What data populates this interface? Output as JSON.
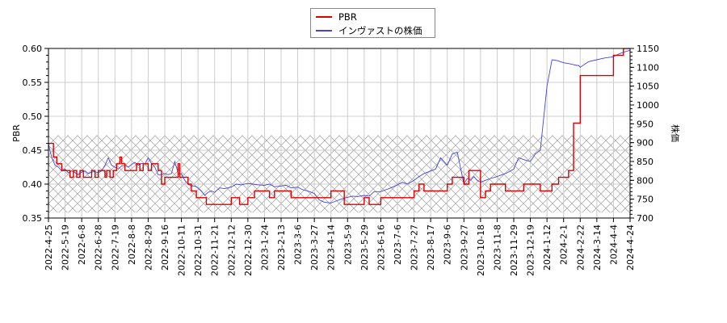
{
  "legend": {
    "items": [
      {
        "label": "PBR",
        "color": "#dd0000"
      },
      {
        "label": "インヴァストの株価",
        "color": "#4444dd"
      }
    ]
  },
  "chart_data": {
    "type": "line",
    "title": "",
    "xlabel": "",
    "ylabel_left": "PBR",
    "ylabel_right": "株価",
    "ylim_left": [
      0.35,
      0.6
    ],
    "ylim_right": [
      700,
      1150
    ],
    "yticks_left": [
      "0.35",
      "0.40",
      "0.45",
      "0.50",
      "0.55",
      "0.60"
    ],
    "yticks_right": [
      "700",
      "750",
      "800",
      "850",
      "900",
      "950",
      "1000",
      "1050",
      "1100",
      "1150"
    ],
    "xticks": [
      "2022-4-25",
      "2022-5-19",
      "2022-6-8",
      "2022-6-28",
      "2022-7-19",
      "2022-8-8",
      "2022-8-29",
      "2022-9-16",
      "2022-10-11",
      "2022-10-31",
      "2022-11-21",
      "2022-12-12",
      "2022-12-30",
      "2023-1-24",
      "2023-2-13",
      "2023-3-6",
      "2023-3-27",
      "2023-4-14",
      "2023-5-9",
      "2023-5-29",
      "2023-6-16",
      "2023-7-6",
      "2023-7-27",
      "2023-8-17",
      "2023-9-6",
      "2023-9-27",
      "2023-10-18",
      "2023-11-8",
      "2023-11-29",
      "2023-12-19",
      "2024-1-12",
      "2024-2-1",
      "2024-2-22",
      "2024-3-14",
      "2024-4-4",
      "2024-4-24"
    ],
    "grid": true,
    "shaded_band_pbr": [
      0.358,
      0.472
    ],
    "series": [
      {
        "name": "PBR",
        "axis": "left",
        "step": true,
        "x_tick_index": [
          0,
          0.3,
          0.5,
          0.8,
          1.0,
          1.3,
          1.5,
          1.7,
          1.9,
          2.1,
          2.3,
          2.6,
          2.8,
          3.0,
          3.2,
          3.4,
          3.5,
          3.7,
          3.9,
          4.1,
          4.3,
          4.4,
          4.6,
          4.8,
          5.0,
          5.3,
          5.5,
          5.7,
          5.9,
          6.0,
          6.2,
          6.4,
          6.6,
          6.8,
          7.0,
          7.2,
          7.4,
          7.6,
          7.8,
          7.9,
          8.1,
          8.4,
          8.6,
          8.9,
          9.1,
          9.3,
          9.5,
          9.8,
          10.0,
          10.5,
          11.0,
          11.5,
          12.0,
          12.4,
          12.6,
          12.9,
          13.1,
          13.3,
          13.6,
          14.0,
          14.6,
          15.0,
          15.3,
          15.6,
          16.0,
          16.5,
          17.0,
          17.8,
          18.1,
          18.5,
          19.0,
          19.3,
          19.6,
          20.0,
          20.6,
          21.0,
          21.3,
          21.7,
          22.0,
          22.3,
          22.6,
          23.0,
          23.5,
          24.0,
          24.3,
          24.6,
          25.0,
          25.3,
          25.6,
          26.0,
          26.3,
          26.6,
          27.0,
          27.5,
          28.0,
          28.6,
          29.0,
          29.3,
          29.6,
          30.0,
          30.3,
          30.7,
          31.0,
          31.3,
          31.6,
          32.0,
          33.0,
          33.6,
          34.0,
          34.3,
          34.6,
          35.0
        ],
        "values": [
          0.46,
          0.44,
          0.43,
          0.42,
          0.42,
          0.41,
          0.42,
          0.41,
          0.42,
          0.41,
          0.41,
          0.42,
          0.41,
          0.42,
          0.42,
          0.41,
          0.42,
          0.41,
          0.42,
          0.43,
          0.44,
          0.43,
          0.42,
          0.42,
          0.42,
          0.43,
          0.42,
          0.43,
          0.43,
          0.42,
          0.43,
          0.43,
          0.42,
          0.4,
          0.41,
          0.41,
          0.41,
          0.41,
          0.43,
          0.41,
          0.41,
          0.4,
          0.39,
          0.38,
          0.38,
          0.38,
          0.37,
          0.37,
          0.37,
          0.37,
          0.38,
          0.37,
          0.38,
          0.39,
          0.39,
          0.39,
          0.39,
          0.38,
          0.39,
          0.39,
          0.38,
          0.38,
          0.38,
          0.38,
          0.38,
          0.38,
          0.39,
          0.37,
          0.37,
          0.37,
          0.38,
          0.37,
          0.37,
          0.38,
          0.38,
          0.38,
          0.38,
          0.38,
          0.39,
          0.4,
          0.39,
          0.39,
          0.39,
          0.4,
          0.41,
          0.41,
          0.4,
          0.42,
          0.42,
          0.38,
          0.39,
          0.4,
          0.4,
          0.39,
          0.39,
          0.4,
          0.4,
          0.4,
          0.39,
          0.39,
          0.4,
          0.41,
          0.41,
          0.42,
          0.49,
          0.56,
          0.56,
          0.56,
          0.59,
          0.59,
          0.6,
          0.6
        ]
      },
      {
        "name": "インヴァストの株価",
        "axis": "right",
        "step": false,
        "x_tick_index": [
          0,
          0.2,
          0.4,
          0.6,
          0.8,
          1.0,
          1.2,
          1.4,
          1.6,
          1.8,
          2.0,
          2.2,
          2.4,
          2.6,
          2.8,
          3.0,
          3.2,
          3.4,
          3.6,
          3.8,
          4.0,
          4.2,
          4.4,
          4.6,
          4.8,
          5.0,
          5.2,
          5.4,
          5.6,
          5.8,
          6.0,
          6.2,
          6.4,
          6.6,
          6.8,
          7.0,
          7.2,
          7.4,
          7.6,
          7.8,
          7.9,
          8.0,
          8.2,
          8.4,
          8.6,
          8.8,
          9.0,
          9.2,
          9.4,
          9.6,
          9.8,
          10.0,
          10.3,
          10.6,
          11.0,
          11.3,
          11.6,
          12.0,
          12.3,
          12.6,
          13.0,
          13.3,
          13.6,
          14.0,
          14.3,
          14.6,
          15.0,
          15.3,
          15.6,
          16.0,
          16.3,
          16.6,
          17.0,
          17.3,
          17.6,
          18.0,
          18.3,
          18.6,
          19.0,
          19.3,
          19.6,
          20.0,
          20.3,
          20.6,
          21.0,
          21.3,
          21.6,
          22.0,
          22.3,
          22.6,
          23.0,
          23.3,
          23.6,
          24.0,
          24.3,
          24.6,
          25.0,
          25.2,
          25.4,
          25.6,
          25.8,
          26.0,
          26.3,
          26.6,
          27.0,
          27.3,
          27.6,
          28.0,
          28.3,
          28.6,
          29.0,
          29.3,
          29.6,
          30.0,
          30.3,
          30.6,
          31.0,
          31.3,
          31.6,
          31.8,
          31.9,
          32.0,
          32.5,
          33.0,
          33.5,
          34.0,
          34.3,
          34.6,
          35.0
        ],
        "values": [
          895,
          860,
          840,
          835,
          825,
          830,
          820,
          825,
          820,
          815,
          822,
          825,
          818,
          822,
          823,
          820,
          825,
          840,
          860,
          840,
          835,
          830,
          838,
          840,
          835,
          842,
          848,
          840,
          845,
          843,
          860,
          845,
          835,
          815,
          815,
          818,
          815,
          818,
          850,
          820,
          815,
          818,
          800,
          790,
          785,
          785,
          780,
          772,
          760,
          768,
          772,
          768,
          780,
          778,
          782,
          790,
          788,
          792,
          790,
          788,
          787,
          790,
          783,
          785,
          787,
          780,
          782,
          775,
          772,
          765,
          748,
          742,
          740,
          745,
          750,
          755,
          758,
          757,
          760,
          758,
          770,
          770,
          775,
          780,
          788,
          795,
          790,
          800,
          810,
          818,
          825,
          830,
          860,
          840,
          870,
          875,
          790,
          805,
          800,
          810,
          800,
          795,
          800,
          805,
          810,
          815,
          820,
          830,
          860,
          855,
          850,
          870,
          880,
          1050,
          1120,
          1118,
          1112,
          1110,
          1107,
          1105,
          1105,
          1100,
          1115,
          1120,
          1125,
          1128,
          1135,
          1140,
          1145
        ]
      }
    ]
  }
}
